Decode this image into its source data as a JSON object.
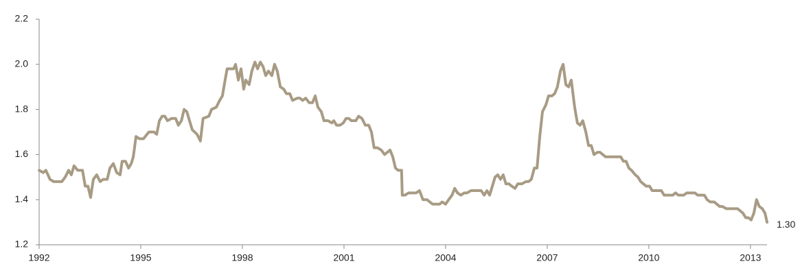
{
  "chart_data": {
    "type": "line",
    "x": [
      1992.0,
      1992.12,
      1992.2,
      1992.32,
      1992.43,
      1992.57,
      1992.67,
      1992.77,
      1992.87,
      1992.95,
      1993.03,
      1993.14,
      1993.28,
      1993.36,
      1993.44,
      1993.52,
      1993.6,
      1993.7,
      1993.8,
      1993.89,
      1994.01,
      1994.09,
      1994.19,
      1994.29,
      1994.39,
      1994.45,
      1994.55,
      1994.64,
      1994.72,
      1994.78,
      1994.86,
      1994.96,
      1995.08,
      1995.24,
      1995.39,
      1995.47,
      1995.55,
      1995.63,
      1995.71,
      1995.79,
      1995.91,
      1996.03,
      1996.11,
      1996.2,
      1996.28,
      1996.36,
      1996.44,
      1996.52,
      1996.66,
      1996.76,
      1996.84,
      1997.01,
      1997.09,
      1997.23,
      1997.33,
      1997.41,
      1997.49,
      1997.55,
      1997.66,
      1997.74,
      1997.8,
      1997.88,
      1997.96,
      1998.04,
      1998.1,
      1998.2,
      1998.28,
      1998.37,
      1998.45,
      1998.53,
      1998.61,
      1998.69,
      1998.77,
      1998.87,
      1998.95,
      1999.03,
      1999.12,
      1999.22,
      1999.3,
      1999.4,
      1999.48,
      1999.62,
      1999.7,
      1999.78,
      1999.87,
      1999.97,
      2000.07,
      2000.15,
      2000.23,
      2000.33,
      2000.41,
      2000.53,
      2000.64,
      2000.7,
      2000.78,
      2000.88,
      2000.98,
      2001.06,
      2001.14,
      2001.22,
      2001.35,
      2001.43,
      2001.53,
      2001.63,
      2001.73,
      2001.81,
      2001.89,
      2001.99,
      2002.1,
      2002.2,
      2002.28,
      2002.36,
      2002.44,
      2002.52,
      2002.6,
      2002.7,
      2002.72,
      2002.8,
      2002.91,
      2003.01,
      2003.13,
      2003.23,
      2003.33,
      2003.45,
      2003.53,
      2003.62,
      2003.74,
      2003.82,
      2003.9,
      2004.0,
      2004.09,
      2004.19,
      2004.27,
      2004.35,
      2004.45,
      2004.55,
      2004.63,
      2004.75,
      2004.85,
      2004.97,
      2005.05,
      2005.14,
      2005.22,
      2005.3,
      2005.38,
      2005.46,
      2005.54,
      2005.62,
      2005.7,
      2005.78,
      2005.87,
      2005.95,
      2006.05,
      2006.13,
      2006.25,
      2006.37,
      2006.45,
      2006.53,
      2006.62,
      2006.7,
      2006.78,
      2006.86,
      2006.96,
      2007.04,
      2007.14,
      2007.22,
      2007.3,
      2007.39,
      2007.47,
      2007.55,
      2007.63,
      2007.71,
      2007.81,
      2007.89,
      2007.97,
      2008.05,
      2008.14,
      2008.22,
      2008.3,
      2008.38,
      2008.48,
      2008.56,
      2008.64,
      2008.72,
      2008.83,
      2008.91,
      2008.99,
      2009.07,
      2009.17,
      2009.25,
      2009.33,
      2009.41,
      2009.49,
      2009.6,
      2009.68,
      2009.76,
      2009.84,
      2009.92,
      2010.02,
      2010.1,
      2010.2,
      2010.28,
      2010.37,
      2010.45,
      2010.53,
      2010.63,
      2010.71,
      2010.79,
      2010.87,
      2010.95,
      2011.03,
      2011.12,
      2011.24,
      2011.36,
      2011.44,
      2011.52,
      2011.64,
      2011.72,
      2011.81,
      2011.93,
      2012.01,
      2012.09,
      2012.17,
      2012.29,
      2012.37,
      2012.45,
      2012.53,
      2012.62,
      2012.7,
      2012.78,
      2012.86,
      2012.94,
      2013.02,
      2013.1,
      2013.18,
      2013.26,
      2013.35,
      2013.43,
      2013.49
    ],
    "values": [
      1.53,
      1.52,
      1.53,
      1.49,
      1.48,
      1.48,
      1.48,
      1.5,
      1.53,
      1.51,
      1.55,
      1.53,
      1.53,
      1.46,
      1.46,
      1.41,
      1.49,
      1.51,
      1.48,
      1.49,
      1.49,
      1.54,
      1.56,
      1.52,
      1.51,
      1.57,
      1.57,
      1.54,
      1.56,
      1.59,
      1.68,
      1.67,
      1.67,
      1.7,
      1.7,
      1.69,
      1.75,
      1.77,
      1.77,
      1.75,
      1.76,
      1.76,
      1.73,
      1.75,
      1.8,
      1.79,
      1.75,
      1.71,
      1.69,
      1.66,
      1.76,
      1.77,
      1.8,
      1.81,
      1.84,
      1.86,
      1.93,
      1.98,
      1.98,
      1.98,
      2.0,
      1.93,
      1.98,
      1.89,
      1.93,
      1.91,
      1.97,
      2.01,
      1.98,
      2.01,
      1.99,
      1.95,
      1.97,
      1.95,
      2.0,
      1.97,
      1.9,
      1.89,
      1.87,
      1.87,
      1.84,
      1.85,
      1.85,
      1.84,
      1.85,
      1.83,
      1.83,
      1.86,
      1.81,
      1.79,
      1.75,
      1.75,
      1.74,
      1.75,
      1.73,
      1.73,
      1.74,
      1.76,
      1.76,
      1.75,
      1.75,
      1.77,
      1.76,
      1.73,
      1.73,
      1.7,
      1.63,
      1.63,
      1.62,
      1.6,
      1.61,
      1.62,
      1.59,
      1.54,
      1.53,
      1.53,
      1.42,
      1.42,
      1.43,
      1.43,
      1.43,
      1.44,
      1.4,
      1.4,
      1.39,
      1.38,
      1.38,
      1.38,
      1.39,
      1.38,
      1.4,
      1.42,
      1.45,
      1.43,
      1.42,
      1.43,
      1.43,
      1.44,
      1.44,
      1.44,
      1.44,
      1.42,
      1.44,
      1.42,
      1.46,
      1.5,
      1.51,
      1.49,
      1.51,
      1.47,
      1.47,
      1.46,
      1.45,
      1.47,
      1.47,
      1.48,
      1.48,
      1.49,
      1.54,
      1.54,
      1.68,
      1.79,
      1.82,
      1.86,
      1.86,
      1.87,
      1.9,
      1.97,
      2.0,
      1.91,
      1.9,
      1.93,
      1.81,
      1.74,
      1.73,
      1.75,
      1.7,
      1.64,
      1.64,
      1.6,
      1.61,
      1.61,
      1.6,
      1.59,
      1.59,
      1.59,
      1.59,
      1.59,
      1.59,
      1.57,
      1.57,
      1.54,
      1.53,
      1.51,
      1.5,
      1.48,
      1.47,
      1.46,
      1.46,
      1.44,
      1.44,
      1.44,
      1.44,
      1.42,
      1.42,
      1.42,
      1.42,
      1.43,
      1.42,
      1.42,
      1.42,
      1.43,
      1.43,
      1.43,
      1.42,
      1.42,
      1.42,
      1.4,
      1.39,
      1.39,
      1.38,
      1.37,
      1.37,
      1.36,
      1.36,
      1.36,
      1.36,
      1.36,
      1.35,
      1.34,
      1.32,
      1.32,
      1.31,
      1.34,
      1.4,
      1.37,
      1.36,
      1.34,
      1.3
    ],
    "color": "#a89b84",
    "xlim": [
      1992,
      2013.49
    ],
    "xticks": [
      1992,
      1995,
      1998,
      2001,
      2004,
      2007,
      2010,
      2013
    ],
    "ylim": [
      1.2,
      2.2
    ],
    "yticks": [
      1.2,
      1.4,
      1.6,
      1.8,
      {
        "value": 2,
        "label": "2.0"
      },
      2.2
    ],
    "end_label": {
      "value": 1.3,
      "label": "1.30"
    },
    "grid": false
  }
}
